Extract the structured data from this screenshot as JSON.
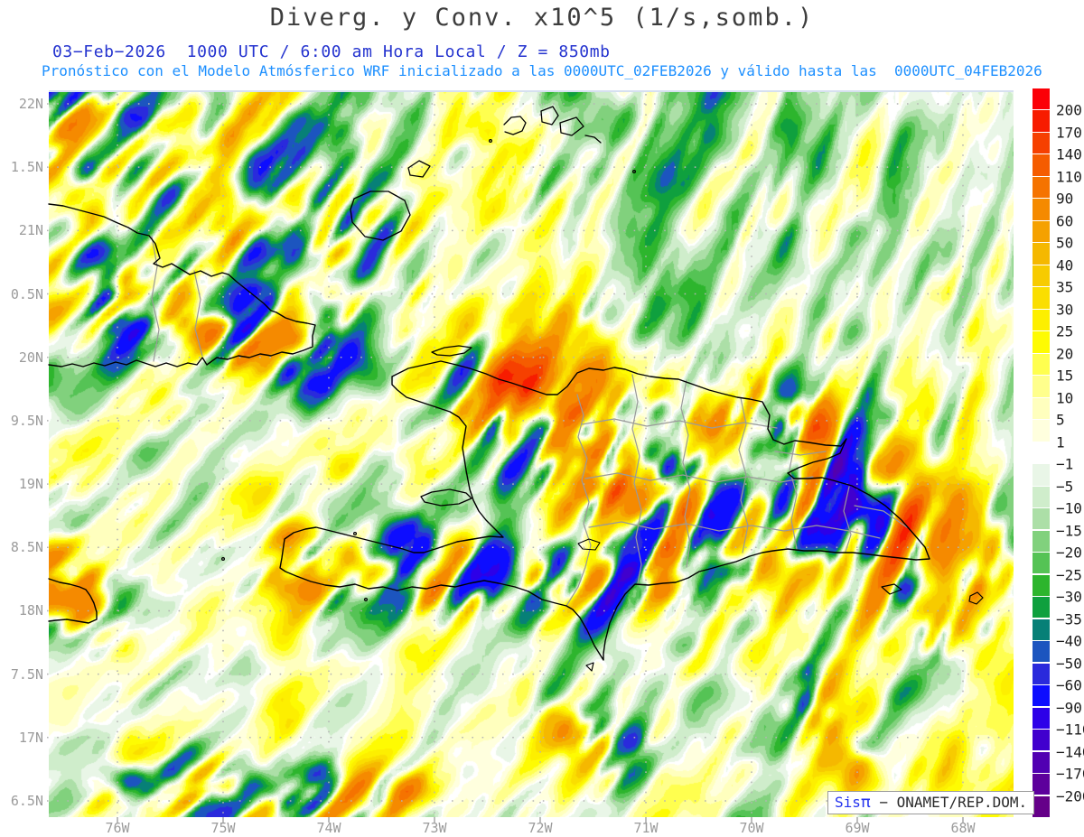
{
  "title": "Diverg. y Conv. x10^5 (1/s,somb.)",
  "subtitle_line1": "03−Feb−2026  1000 UTC / 6:00 am Hora Local / Z = 850mb",
  "forecast_line": "Pronóstico con el Modelo Atmósferico WRF inicializado a las 0000UTC_02FEB2026 y válido hasta las  0000UTC_04FEB2026",
  "credit": {
    "prefix": "Sis",
    "pi": "π",
    "suffix": " − ONAMET/REP.DOM."
  },
  "colors": {
    "title_text": "#3d3d3d",
    "subtitle_text": "#2433cf",
    "forecast_text": "#1e90ff",
    "axis_label_text": "#9b9b9b",
    "grid_dots": "#b4b4b4",
    "coastline": "#000000",
    "province_border": "#9a9a9a",
    "credit_blue": "#2433ef"
  },
  "axes": {
    "lat_labels": [
      "22N",
      "1.5N",
      "21N",
      "0.5N",
      "20N",
      "9.5N",
      "19N",
      "8.5N",
      "18N",
      "7.5N",
      "17N",
      "6.5N"
    ],
    "lon_labels": [
      "76W",
      "75W",
      "74W",
      "73W",
      "72W",
      "71W",
      "70W",
      "69W",
      "68W"
    ]
  },
  "colorbar": {
    "levels": [
      200,
      170,
      140,
      110,
      90,
      60,
      50,
      40,
      35,
      30,
      25,
      20,
      15,
      10,
      5,
      1,
      -1,
      -5,
      -10,
      -15,
      -20,
      -25,
      -30,
      -35,
      -40,
      -50,
      -60,
      -90,
      -110,
      -140,
      -170,
      -200
    ],
    "colors": [
      "#FB0007",
      "#F71C00",
      "#F64000",
      "#F55C00",
      "#F57300",
      "#F58A00",
      "#F5A100",
      "#F5B800",
      "#F7CB00",
      "#FADE00",
      "#FDEF00",
      "#FEFB02",
      "#FFFF4F",
      "#FFFF8C",
      "#FFFFBE",
      "#FFFFDE",
      "#FFFFFF",
      "#E9F6E7",
      "#CFEDCB",
      "#ACDFA7",
      "#81D17D",
      "#55C355",
      "#2DB52D",
      "#0FA03E",
      "#078077",
      "#1C55BF",
      "#2A2ADC",
      "#0D0DFF",
      "#2D00E8",
      "#4100CE",
      "#5100B2",
      "#5D009C",
      "#650089"
    ]
  },
  "chart_data": {
    "type": "heatmap",
    "title": "Diverg. y Conv. x10^5 (1/s,somb.)",
    "units": "1/s x10^5",
    "level": "850mb",
    "valid_time": "03−Feb−2026 1000 UTC / 6:00 am Hora Local",
    "scale_levels": [
      200,
      170,
      140,
      110,
      90,
      60,
      50,
      40,
      35,
      30,
      25,
      20,
      15,
      10,
      5,
      1,
      -1,
      -5,
      -10,
      -15,
      -20,
      -25,
      -30,
      -35,
      -40,
      -50,
      -60,
      -90,
      -110,
      -140,
      -170,
      -200
    ],
    "lat_ticks": [
      "22N",
      "1.5N",
      "21N",
      "0.5N",
      "20N",
      "9.5N",
      "19N",
      "8.5N",
      "18N",
      "7.5N",
      "17N",
      "6.5N"
    ],
    "lon_ticks": [
      "76W",
      "75W",
      "74W",
      "73W",
      "72W",
      "71W",
      "70W",
      "69W",
      "68W"
    ],
    "legend_position": "right"
  }
}
